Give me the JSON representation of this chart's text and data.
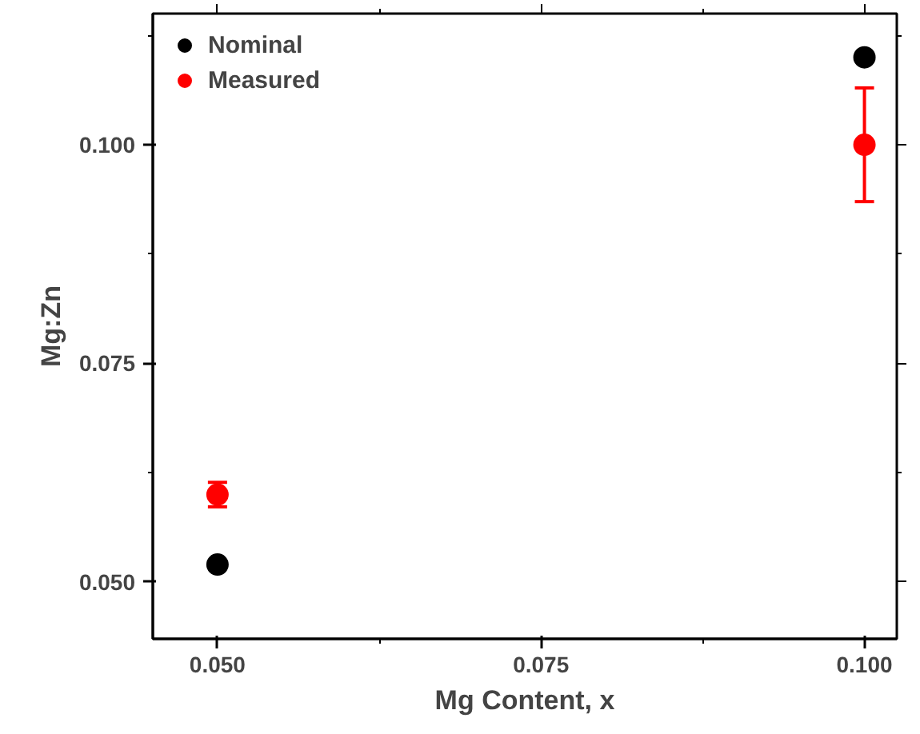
{
  "chart_data": {
    "type": "scatter",
    "xlabel": "Mg Content, x",
    "ylabel": "Mg:Zn",
    "x": [
      0.05,
      0.1
    ],
    "series": [
      {
        "name": "Nominal",
        "color": "#000000",
        "values": [
          0.052,
          0.11
        ]
      },
      {
        "name": "Measured",
        "color": "#ff0000",
        "values": [
          0.06,
          0.1
        ],
        "errors": [
          0.0014,
          0.0065
        ]
      }
    ],
    "xlim": [
      0.045,
      0.1025
    ],
    "ylim": [
      0.0435,
      0.115
    ],
    "xticks": [
      {
        "value": 0.05,
        "label": "0.050"
      },
      {
        "value": 0.075,
        "label": "0.075"
      },
      {
        "value": 0.1,
        "label": "0.100"
      }
    ],
    "yticks": [
      {
        "value": 0.05,
        "label": "0.050"
      },
      {
        "value": 0.075,
        "label": "0.075"
      },
      {
        "value": 0.1,
        "label": "0.100"
      }
    ],
    "marker": "circle",
    "legend": "top left",
    "grid": false
  }
}
